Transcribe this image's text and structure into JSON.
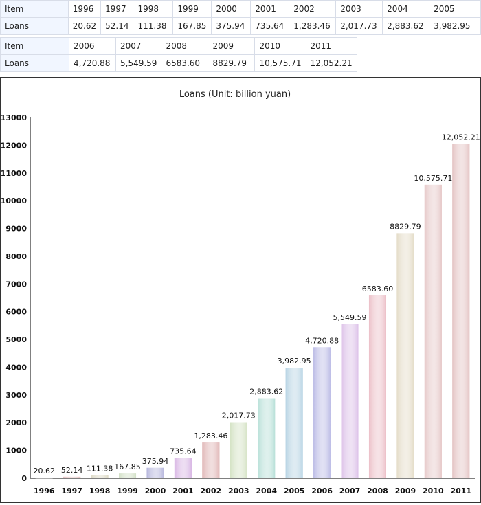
{
  "table": {
    "row_label_item": "Item",
    "row_label_loans": "Loans",
    "years_1": [
      "1996",
      "1997",
      "1998",
      "1999",
      "2000",
      "2001",
      "2002",
      "2003",
      "2004",
      "2005"
    ],
    "values_1": [
      "20.62",
      "52.14",
      "111.38",
      "167.85",
      "375.94",
      "735.64",
      "1,283.46",
      "2,017.73",
      "2,883.62",
      "3,982.95"
    ],
    "years_2": [
      "2006",
      "2007",
      "2008",
      "2009",
      "2010",
      "2011"
    ],
    "values_2": [
      "4,720.88",
      "5,549.59",
      "6583.60",
      "8829.79",
      "10,575.71",
      "12,052.21"
    ]
  },
  "chart_data": {
    "type": "bar",
    "title": "Loans (Unit: billion yuan)",
    "xlabel": "",
    "ylabel": "",
    "ylim": [
      0,
      13000
    ],
    "yticks": [
      0,
      1000,
      2000,
      3000,
      4000,
      5000,
      6000,
      7000,
      8000,
      9000,
      10000,
      11000,
      12000,
      13000
    ],
    "grid": false,
    "categories": [
      "1996",
      "1997",
      "1998",
      "1999",
      "2000",
      "2001",
      "2002",
      "2003",
      "2004",
      "2005",
      "2006",
      "2007",
      "2008",
      "2009",
      "2010",
      "2011"
    ],
    "values": [
      20.62,
      52.14,
      111.38,
      167.85,
      375.94,
      735.64,
      1283.46,
      2017.73,
      2883.62,
      3982.95,
      4720.88,
      5549.59,
      6583.6,
      8829.79,
      10575.71,
      12052.21
    ],
    "data_labels": [
      "20.62",
      "52.14",
      "111.38",
      "167.85",
      "375.94",
      "735.64",
      "1,283.46",
      "2,017.73",
      "2,883.62",
      "3,982.95",
      "4,720.88",
      "5,549.59",
      "6583.60",
      "8829.79",
      "10,575.71",
      "12,052.21"
    ],
    "colors": [
      "#8c8c8c",
      "#e7bfbf",
      "#dcd8c4",
      "#d2e0c6",
      "#b6b6dc",
      "#d8b6e4",
      "#e0b6b6",
      "#d4e2c4",
      "#b8e0d8",
      "#b8d4e4",
      "#bcbce6",
      "#dcc0e8",
      "#ecc0c8",
      "#e4dcc8",
      "#e6c8c8",
      "#e4c4c4"
    ]
  }
}
